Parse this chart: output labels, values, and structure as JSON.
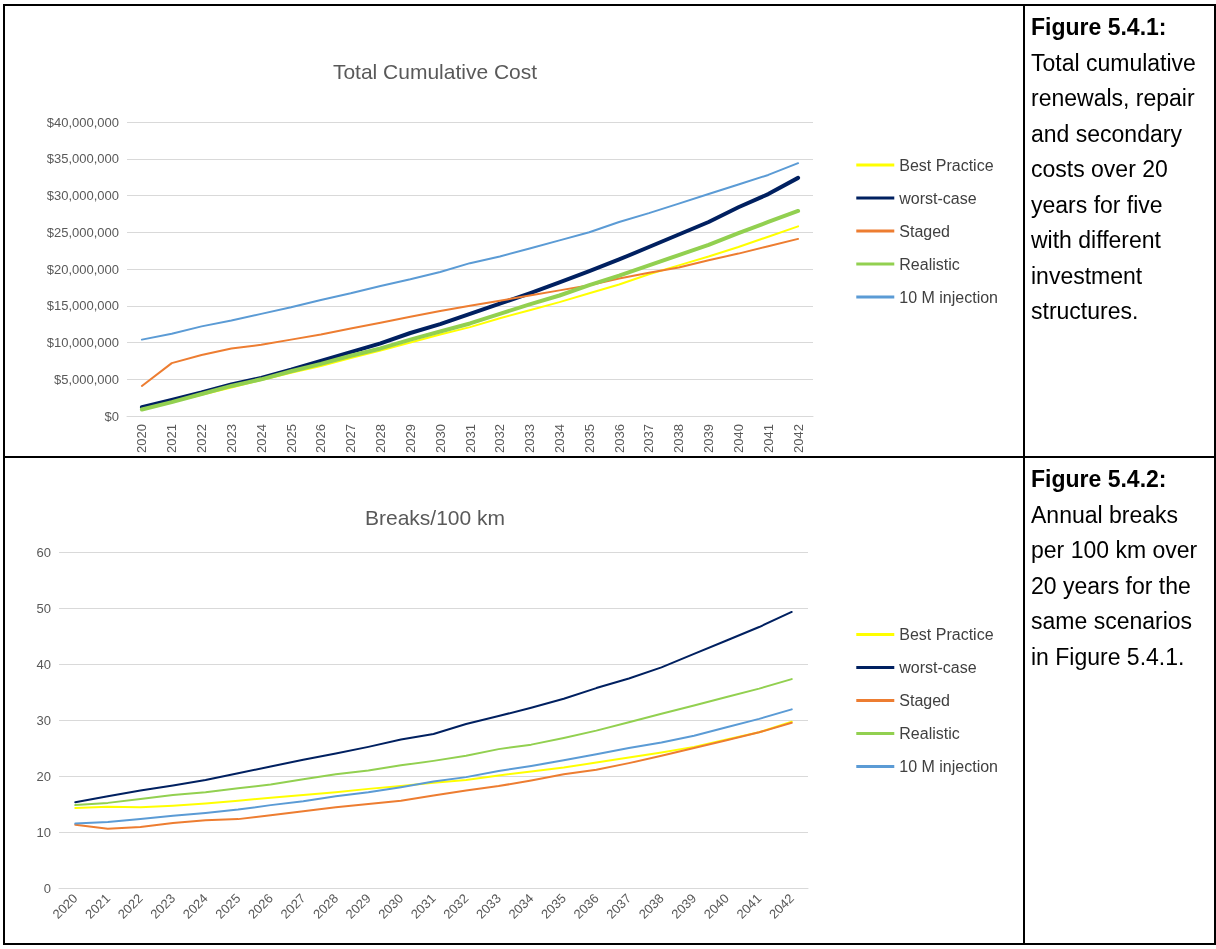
{
  "chart_data": [
    {
      "type": "line",
      "title": "Total Cumulative Cost",
      "annotations": [
        "Figure 5.4.1:",
        "Total cumulative renewals, repair and secondary costs over 20 years for five with different investment structures."
      ],
      "categories": [
        "2020",
        "2021",
        "2022",
        "2023",
        "2024",
        "2025",
        "2026",
        "2027",
        "2028",
        "2029",
        "2030",
        "2031",
        "2032",
        "2033",
        "2034",
        "2035",
        "2036",
        "2037",
        "2038",
        "2039",
        "2040",
        "2041",
        "2042"
      ],
      "series": [
        {
          "name": "Best Practice",
          "color": "#ffff00",
          "values": [
            900000,
            1900000,
            2900000,
            3900000,
            4900000,
            5900000,
            6800000,
            7900000,
            8900000,
            10000000,
            11100000,
            12100000,
            13300000,
            14400000,
            15500000,
            16700000,
            17900000,
            19300000,
            20500000,
            21700000,
            23000000,
            24400000,
            25800000
          ]
        },
        {
          "name": "worst-case",
          "color": "#002060",
          "values": [
            1200000,
            2200000,
            3200000,
            4300000,
            5200000,
            6300000,
            7500000,
            8700000,
            9900000,
            11300000,
            12500000,
            13900000,
            15300000,
            16700000,
            18200000,
            19700000,
            21300000,
            23000000,
            24700000,
            26400000,
            28400000,
            30200000,
            32400000
          ]
        },
        {
          "name": "Staged",
          "color": "#ed7d31",
          "values": [
            4100000,
            7200000,
            8300000,
            9200000,
            9700000,
            10400000,
            11100000,
            11900000,
            12700000,
            13500000,
            14300000,
            15000000,
            15700000,
            16400000,
            17100000,
            17800000,
            18700000,
            19500000,
            20200000,
            21200000,
            22100000,
            23100000,
            24100000
          ]
        },
        {
          "name": "Realistic",
          "color": "#92d050",
          "values": [
            900000,
            1900000,
            3000000,
            4100000,
            5000000,
            6100000,
            7100000,
            8200000,
            9200000,
            10400000,
            11500000,
            12600000,
            13900000,
            15200000,
            16400000,
            17800000,
            19100000,
            20500000,
            21900000,
            23300000,
            24900000,
            26400000,
            27900000
          ]
        },
        {
          "name": "10 M injection",
          "color": "#5b9bd5",
          "values": [
            10400000,
            11200000,
            12200000,
            13000000,
            13900000,
            14800000,
            15800000,
            16700000,
            17700000,
            18600000,
            19600000,
            20800000,
            21700000,
            22800000,
            23900000,
            25000000,
            26400000,
            27600000,
            28900000,
            30200000,
            31500000,
            32800000,
            34400000
          ]
        }
      ],
      "ylim": [
        0,
        40000000
      ],
      "yticks": [
        {
          "value": 0,
          "label": "$0"
        },
        {
          "value": 5000000,
          "label": "$5,000,000"
        },
        {
          "value": 10000000,
          "label": "$10,000,000"
        },
        {
          "value": 15000000,
          "label": "$15,000,000"
        },
        {
          "value": 20000000,
          "label": "$20,000,000"
        },
        {
          "value": 25000000,
          "label": "$25,000,000"
        },
        {
          "value": 30000000,
          "label": "$30,000,000"
        },
        {
          "value": 35000000,
          "label": "$35,000,000"
        },
        {
          "value": 40000000,
          "label": "$40,000,000"
        }
      ],
      "grid": "y",
      "legend": "right",
      "marker": "none",
      "line_style": "solid"
    },
    {
      "type": "line",
      "title": "Breaks/100 km",
      "annotations": [
        "Figure 5.4.2:",
        "Annual breaks per 100 km over 20 years for the same scenarios in Figure 5.4.1."
      ],
      "categories": [
        "2020",
        "2021",
        "2022",
        "2023",
        "2024",
        "2025",
        "2026",
        "2027",
        "2028",
        "2029",
        "2030",
        "2031",
        "2032",
        "2033",
        "2034",
        "2035",
        "2036",
        "2037",
        "2038",
        "2039",
        "2040",
        "2041",
        "2042"
      ],
      "series": [
        {
          "name": "Best Practice",
          "color": "#ffff00",
          "values": [
            14.3,
            14.5,
            14.4,
            14.7,
            15.1,
            15.6,
            16.1,
            16.6,
            17.1,
            17.7,
            18.2,
            18.8,
            19.3,
            20.1,
            20.8,
            21.5,
            22.4,
            23.3,
            24.2,
            25.2,
            26.5,
            27.8,
            29.7
          ]
        },
        {
          "name": "worst-case",
          "color": "#002060",
          "values": [
            15.3,
            16.4,
            17.4,
            18.3,
            19.3,
            20.5,
            21.7,
            22.9,
            24.0,
            25.2,
            26.5,
            27.5,
            29.3,
            30.7,
            32.2,
            33.8,
            35.7,
            37.4,
            39.4,
            41.8,
            44.2,
            46.6,
            49.3
          ]
        },
        {
          "name": "Staged",
          "color": "#ed7d31",
          "values": [
            11.3,
            10.6,
            10.9,
            11.6,
            12.1,
            12.3,
            13.0,
            13.7,
            14.4,
            15.0,
            15.6,
            16.5,
            17.4,
            18.2,
            19.2,
            20.3,
            21.1,
            22.3,
            23.6,
            25.0,
            26.4,
            27.8,
            29.5
          ]
        },
        {
          "name": "Realistic",
          "color": "#92d050",
          "values": [
            14.8,
            15.2,
            15.9,
            16.6,
            17.1,
            17.8,
            18.5,
            19.4,
            20.3,
            21.0,
            21.9,
            22.7,
            23.6,
            24.8,
            25.6,
            26.8,
            28.1,
            29.6,
            31.1,
            32.6,
            34.1,
            35.6,
            37.3
          ]
        },
        {
          "name": "10 M injection",
          "color": "#5b9bd5",
          "values": [
            11.5,
            11.8,
            12.3,
            12.9,
            13.4,
            14.0,
            14.8,
            15.5,
            16.4,
            17.1,
            18.0,
            19.0,
            19.8,
            20.9,
            21.8,
            22.8,
            23.9,
            25.0,
            26.0,
            27.2,
            28.7,
            30.2,
            31.9
          ]
        }
      ],
      "ylim": [
        0,
        60
      ],
      "yticks": [
        0,
        10,
        20,
        30,
        40,
        50,
        60
      ],
      "grid": "y",
      "legend": "right",
      "marker": "none",
      "line_style": "solid"
    }
  ]
}
